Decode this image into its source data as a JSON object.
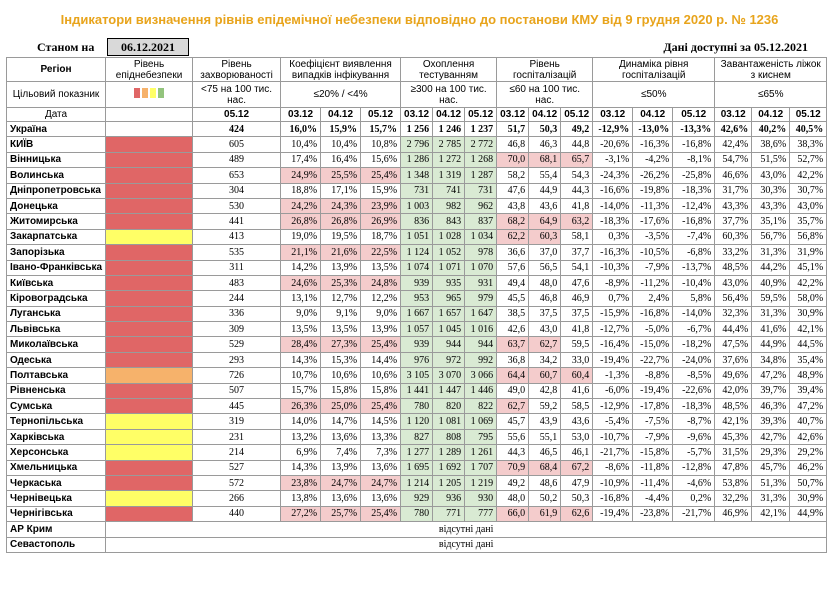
{
  "title": "Індикатори визначення рівнів епідемічної небезпеки відповідно до постанови КМУ від 9 грудня 2020 р. № 1236",
  "as_of_label": "Станом на",
  "as_of_date": "06.12.2021",
  "data_available": "Дані доступні за 05.12.2021",
  "header": {
    "region": "Регіон",
    "target": "Цільовий показник",
    "date": "Дата",
    "danger_level": "Рівень епіднебезпеки",
    "incidence": "Рівень захворюваності",
    "incidence_target": "<75 на 100 тис. нас.",
    "incidence_date": "05.12",
    "detection": "Коефіцієнт виявлення випадків інфікування",
    "detection_target": "≤20% / <4%",
    "testing": "Охоплення тестуванням",
    "testing_target": "≥300 на 100 тис. нас.",
    "hosp": "Рівень госпіталізацій",
    "hosp_target": "≤60 на 100 тис. нас.",
    "hosp_dyn": "Динаміка рівня госпіталізацій",
    "hosp_dyn_target": "≤50%",
    "oxygen": "Завантаженість ліжок з киснем",
    "oxygen_target": "≤65%",
    "dates": [
      "03.12",
      "04.12",
      "05.12"
    ]
  },
  "level_colors": [
    "#e06666",
    "#f6b26b",
    "#ffff66",
    "#93c47d"
  ],
  "rows": [
    {
      "name": "Україна",
      "level": "",
      "inc": "424",
      "det": [
        "16,0%",
        "15,9%",
        "15,7%"
      ],
      "test": [
        "1 256",
        "1 246",
        "1 237"
      ],
      "hosp": [
        "51,7",
        "50,3",
        "49,2"
      ],
      "dyn": [
        "-12,9%",
        "-13,0%",
        "-13,3%"
      ],
      "oxy": [
        "42,6%",
        "40,2%",
        "40,5%"
      ]
    },
    {
      "name": "КИЇВ",
      "level": "red",
      "inc": "605",
      "det": [
        "10,4%",
        "10,4%",
        "10,8%"
      ],
      "test": [
        "2 796",
        "2 785",
        "2 772"
      ],
      "hosp": [
        "46,8",
        "46,3",
        "44,8"
      ],
      "dyn": [
        "-20,6%",
        "-16,3%",
        "-16,8%"
      ],
      "oxy": [
        "42,4%",
        "38,6%",
        "38,3%"
      ]
    },
    {
      "name": "Вінницька",
      "level": "red",
      "inc": "489",
      "det": [
        "17,4%",
        "16,4%",
        "15,6%"
      ],
      "test": [
        "1 286",
        "1 272",
        "1 268"
      ],
      "hosp": [
        "70,0",
        "68,1",
        "65,7"
      ],
      "dyn": [
        "-3,1%",
        "-4,2%",
        "-8,1%"
      ],
      "oxy": [
        "54,7%",
        "51,5%",
        "52,7%"
      ]
    },
    {
      "name": "Волинська",
      "level": "red",
      "inc": "653",
      "det": [
        "24,9%",
        "25,5%",
        "25,4%"
      ],
      "test": [
        "1 348",
        "1 319",
        "1 287"
      ],
      "hosp": [
        "58,2",
        "55,4",
        "54,3"
      ],
      "dyn": [
        "-24,3%",
        "-26,2%",
        "-25,8%"
      ],
      "oxy": [
        "46,6%",
        "43,0%",
        "42,2%"
      ]
    },
    {
      "name": "Дніпропетровська",
      "level": "red",
      "inc": "304",
      "det": [
        "18,8%",
        "17,1%",
        "15,9%"
      ],
      "test": [
        "731",
        "741",
        "731"
      ],
      "hosp": [
        "47,6",
        "44,9",
        "44,3"
      ],
      "dyn": [
        "-16,6%",
        "-19,8%",
        "-18,3%"
      ],
      "oxy": [
        "31,7%",
        "30,3%",
        "30,7%"
      ]
    },
    {
      "name": "Донецька",
      "level": "red",
      "inc": "530",
      "det": [
        "24,2%",
        "24,3%",
        "23,9%"
      ],
      "test": [
        "1 003",
        "982",
        "962"
      ],
      "hosp": [
        "43,8",
        "43,6",
        "41,8"
      ],
      "dyn": [
        "-14,0%",
        "-11,3%",
        "-12,4%"
      ],
      "oxy": [
        "43,3%",
        "43,3%",
        "43,0%"
      ]
    },
    {
      "name": "Житомирська",
      "level": "red",
      "inc": "441",
      "det": [
        "26,8%",
        "26,8%",
        "26,9%"
      ],
      "test": [
        "836",
        "843",
        "837"
      ],
      "hosp": [
        "68,2",
        "64,9",
        "63,2"
      ],
      "dyn": [
        "-18,3%",
        "-17,6%",
        "-16,8%"
      ],
      "oxy": [
        "37,7%",
        "35,1%",
        "35,7%"
      ]
    },
    {
      "name": "Закарпатська",
      "level": "yel",
      "inc": "413",
      "det": [
        "19,0%",
        "19,5%",
        "18,7%"
      ],
      "test": [
        "1 051",
        "1 028",
        "1 034"
      ],
      "hosp": [
        "62,2",
        "60,3",
        "58,1"
      ],
      "dyn": [
        "0,3%",
        "-3,5%",
        "-7,4%"
      ],
      "oxy": [
        "60,3%",
        "56,7%",
        "56,8%"
      ]
    },
    {
      "name": "Запорізька",
      "level": "red",
      "inc": "535",
      "det": [
        "21,1%",
        "21,6%",
        "22,5%"
      ],
      "test": [
        "1 124",
        "1 052",
        "978"
      ],
      "hosp": [
        "36,6",
        "37,0",
        "37,7"
      ],
      "dyn": [
        "-16,3%",
        "-10,5%",
        "-6,8%"
      ],
      "oxy": [
        "33,2%",
        "31,3%",
        "31,9%"
      ]
    },
    {
      "name": "Івано-Франківська",
      "level": "red",
      "inc": "311",
      "det": [
        "14,2%",
        "13,9%",
        "13,5%"
      ],
      "test": [
        "1 074",
        "1 071",
        "1 070"
      ],
      "hosp": [
        "57,6",
        "56,5",
        "54,1"
      ],
      "dyn": [
        "-10,3%",
        "-7,9%",
        "-13,7%"
      ],
      "oxy": [
        "48,5%",
        "44,2%",
        "45,1%"
      ]
    },
    {
      "name": "Київська",
      "level": "red",
      "inc": "483",
      "det": [
        "24,6%",
        "25,3%",
        "24,8%"
      ],
      "test": [
        "939",
        "935",
        "931"
      ],
      "hosp": [
        "49,4",
        "48,0",
        "47,6"
      ],
      "dyn": [
        "-8,9%",
        "-11,2%",
        "-10,4%"
      ],
      "oxy": [
        "43,0%",
        "40,9%",
        "42,2%"
      ]
    },
    {
      "name": "Кіровоградська",
      "level": "red",
      "inc": "244",
      "det": [
        "13,1%",
        "12,7%",
        "12,2%"
      ],
      "test": [
        "953",
        "965",
        "979"
      ],
      "hosp": [
        "45,5",
        "46,8",
        "46,9"
      ],
      "dyn": [
        "0,7%",
        "2,4%",
        "5,8%"
      ],
      "oxy": [
        "56,4%",
        "59,5%",
        "58,0%"
      ]
    },
    {
      "name": "Луганська",
      "level": "red",
      "inc": "336",
      "det": [
        "9,0%",
        "9,1%",
        "9,0%"
      ],
      "test": [
        "1 667",
        "1 657",
        "1 647"
      ],
      "hosp": [
        "38,5",
        "37,5",
        "37,5"
      ],
      "dyn": [
        "-15,9%",
        "-16,8%",
        "-14,0%"
      ],
      "oxy": [
        "32,3%",
        "31,3%",
        "30,9%"
      ]
    },
    {
      "name": "Львівська",
      "level": "red",
      "inc": "309",
      "det": [
        "13,5%",
        "13,5%",
        "13,9%"
      ],
      "test": [
        "1 057",
        "1 045",
        "1 016"
      ],
      "hosp": [
        "42,6",
        "43,0",
        "41,8"
      ],
      "dyn": [
        "-12,7%",
        "-5,0%",
        "-6,7%"
      ],
      "oxy": [
        "44,4%",
        "41,6%",
        "42,1%"
      ]
    },
    {
      "name": "Миколаївська",
      "level": "red",
      "inc": "529",
      "det": [
        "28,4%",
        "27,3%",
        "25,4%"
      ],
      "test": [
        "939",
        "944",
        "944"
      ],
      "hosp": [
        "63,7",
        "62,7",
        "59,5"
      ],
      "dyn": [
        "-16,4%",
        "-15,0%",
        "-18,2%"
      ],
      "oxy": [
        "47,5%",
        "44,9%",
        "44,5%"
      ]
    },
    {
      "name": "Одеська",
      "level": "red",
      "inc": "293",
      "det": [
        "14,3%",
        "15,3%",
        "14,4%"
      ],
      "test": [
        "976",
        "972",
        "992"
      ],
      "hosp": [
        "36,8",
        "34,2",
        "33,0"
      ],
      "dyn": [
        "-19,4%",
        "-22,7%",
        "-24,0%"
      ],
      "oxy": [
        "37,6%",
        "34,8%",
        "35,4%"
      ]
    },
    {
      "name": "Полтавська",
      "level": "ora",
      "inc": "726",
      "det": [
        "10,7%",
        "10,6%",
        "10,6%"
      ],
      "test": [
        "3 105",
        "3 070",
        "3 066"
      ],
      "hosp": [
        "64,4",
        "60,7",
        "60,4"
      ],
      "dyn": [
        "-1,3%",
        "-8,8%",
        "-8,5%"
      ],
      "oxy": [
        "49,6%",
        "47,2%",
        "48,9%"
      ]
    },
    {
      "name": "Рівненська",
      "level": "red",
      "inc": "507",
      "det": [
        "15,7%",
        "15,8%",
        "15,8%"
      ],
      "test": [
        "1 441",
        "1 447",
        "1 446"
      ],
      "hosp": [
        "49,0",
        "42,8",
        "41,6"
      ],
      "dyn": [
        "-6,0%",
        "-19,4%",
        "-22,6%"
      ],
      "oxy": [
        "42,0%",
        "39,7%",
        "39,4%"
      ]
    },
    {
      "name": "Сумська",
      "level": "red",
      "inc": "445",
      "det": [
        "26,3%",
        "25,0%",
        "25,4%"
      ],
      "test": [
        "780",
        "820",
        "822"
      ],
      "hosp": [
        "62,7",
        "59,2",
        "58,5"
      ],
      "dyn": [
        "-12,9%",
        "-17,8%",
        "-18,3%"
      ],
      "oxy": [
        "48,5%",
        "46,3%",
        "47,2%"
      ]
    },
    {
      "name": "Тернопільська",
      "level": "yel",
      "inc": "319",
      "det": [
        "14,0%",
        "14,7%",
        "14,5%"
      ],
      "test": [
        "1 120",
        "1 081",
        "1 069"
      ],
      "hosp": [
        "45,7",
        "43,9",
        "43,6"
      ],
      "dyn": [
        "-5,4%",
        "-7,5%",
        "-8,7%"
      ],
      "oxy": [
        "42,1%",
        "39,3%",
        "40,7%"
      ]
    },
    {
      "name": "Харківська",
      "level": "yel",
      "inc": "231",
      "det": [
        "13,2%",
        "13,6%",
        "13,3%"
      ],
      "test": [
        "827",
        "808",
        "795"
      ],
      "hosp": [
        "55,6",
        "55,1",
        "53,0"
      ],
      "dyn": [
        "-10,7%",
        "-7,9%",
        "-9,6%"
      ],
      "oxy": [
        "45,3%",
        "42,7%",
        "42,6%"
      ]
    },
    {
      "name": "Херсонська",
      "level": "yel",
      "inc": "214",
      "det": [
        "6,9%",
        "7,4%",
        "7,3%"
      ],
      "test": [
        "1 277",
        "1 289",
        "1 261"
      ],
      "hosp": [
        "44,3",
        "46,5",
        "46,1"
      ],
      "dyn": [
        "-21,7%",
        "-15,8%",
        "-5,7%"
      ],
      "oxy": [
        "31,5%",
        "29,3%",
        "29,2%"
      ]
    },
    {
      "name": "Хмельницька",
      "level": "red",
      "inc": "527",
      "det": [
        "14,3%",
        "13,9%",
        "13,6%"
      ],
      "test": [
        "1 695",
        "1 692",
        "1 707"
      ],
      "hosp": [
        "70,9",
        "68,4",
        "67,2"
      ],
      "dyn": [
        "-8,6%",
        "-11,8%",
        "-12,8%"
      ],
      "oxy": [
        "47,8%",
        "45,7%",
        "46,2%"
      ]
    },
    {
      "name": "Черкаська",
      "level": "red",
      "inc": "572",
      "det": [
        "23,8%",
        "24,7%",
        "24,7%"
      ],
      "test": [
        "1 214",
        "1 205",
        "1 219"
      ],
      "hosp": [
        "49,2",
        "48,6",
        "47,9"
      ],
      "dyn": [
        "-10,9%",
        "-11,4%",
        "-4,6%"
      ],
      "oxy": [
        "53,8%",
        "51,3%",
        "50,7%"
      ]
    },
    {
      "name": "Чернівецька",
      "level": "yel",
      "inc": "266",
      "det": [
        "13,8%",
        "13,6%",
        "13,6%"
      ],
      "test": [
        "929",
        "936",
        "930"
      ],
      "hosp": [
        "48,0",
        "50,2",
        "50,3"
      ],
      "dyn": [
        "-16,8%",
        "-4,4%",
        "0,2%"
      ],
      "oxy": [
        "32,2%",
        "31,3%",
        "30,9%"
      ]
    },
    {
      "name": "Чернігівська",
      "level": "red",
      "inc": "440",
      "det": [
        "27,2%",
        "25,7%",
        "25,4%"
      ],
      "test": [
        "780",
        "771",
        "777"
      ],
      "hosp": [
        "66,0",
        "61,9",
        "62,6"
      ],
      "dyn": [
        "-19,4%",
        "-23,8%",
        "-21,7%"
      ],
      "oxy": [
        "46,9%",
        "42,1%",
        "44,9%"
      ]
    }
  ],
  "missing_rows": [
    {
      "name": "АР Крим",
      "text": "відсутні дані"
    },
    {
      "name": "Севастополь",
      "text": "відсутні дані"
    }
  ]
}
